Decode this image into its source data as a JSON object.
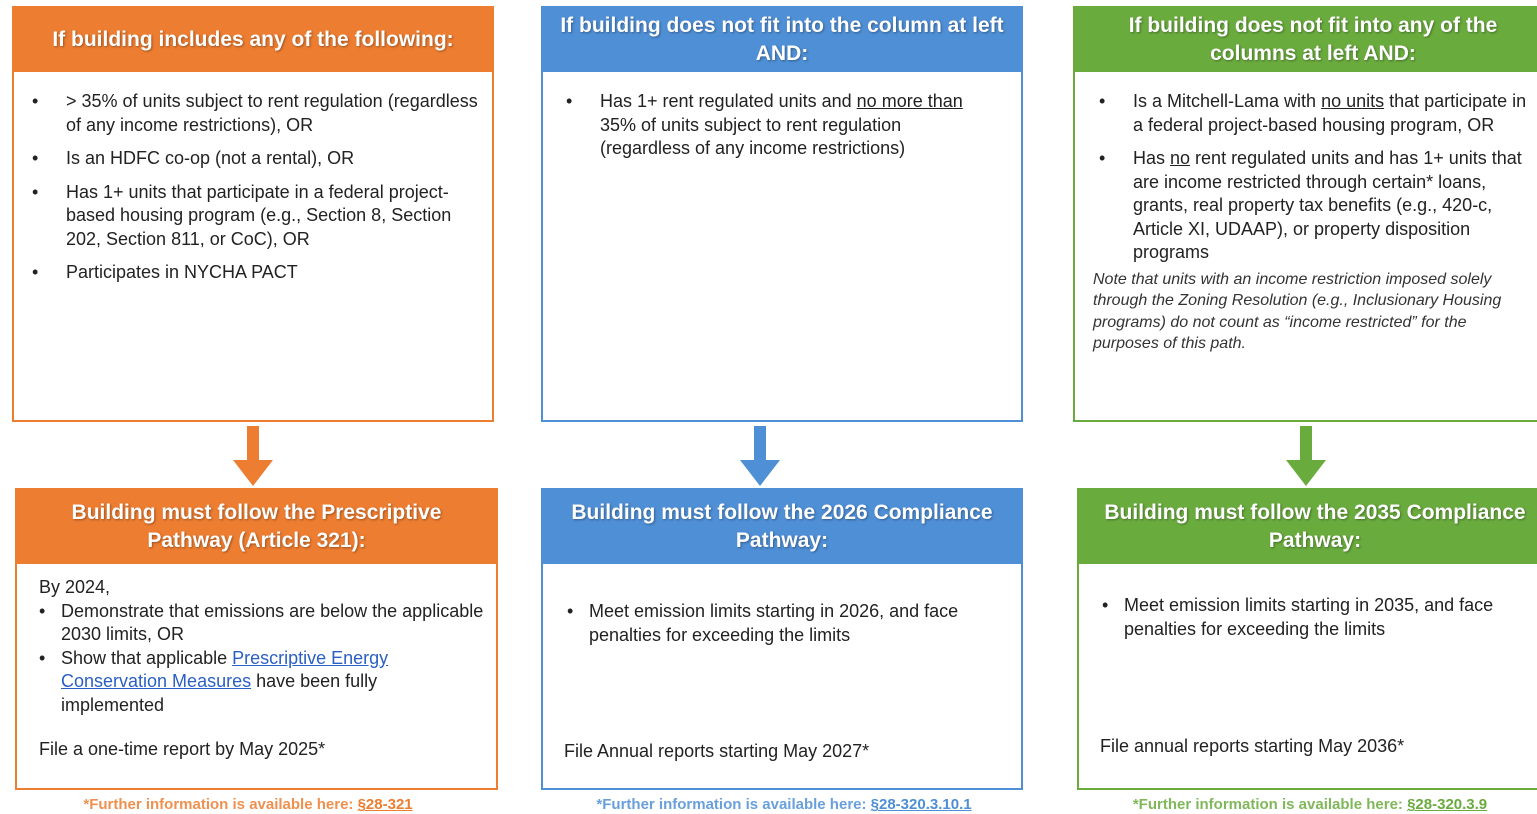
{
  "columns": [
    {
      "color": "#ed7d31",
      "condition": {
        "title": "If building includes any of the following:",
        "bullets": [
          [
            "> 35% of units subject to rent regulation (regardless of any income restrictions), OR"
          ],
          [
            "Is an HDFC co-op (not a rental), OR"
          ],
          [
            "Has 1+ units that participate in a federal project-based housing program (e.g., Section 8, Section 202, Section 811, or CoC), OR"
          ],
          [
            "Participates in NYCHA PACT"
          ]
        ]
      },
      "pathway": {
        "title": "Building must follow the Prescriptive Pathway (Article 321):",
        "intro": "By 2024,",
        "bullets": [
          [
            "Demonstrate that emissions are below the applicable 2030 limits, OR"
          ],
          [
            "Show that applicable ",
            {
              "text": "Prescriptive Energy Conservation Measures",
              "link": true
            },
            " have been fully implemented"
          ]
        ],
        "file": "File a one-time report by May 2025*"
      },
      "footer": {
        "text": "*Further information is available here: ",
        "link": "§28-321"
      }
    },
    {
      "color": "#4f8fd6",
      "condition": {
        "title": "If building does not fit into the column at left AND:",
        "bullets": [
          [
            "Has 1+ rent regulated units and ",
            {
              "text": "no more than",
              "underline": true
            },
            " 35% of units subject to rent regulation (regardless of any income restrictions)"
          ]
        ]
      },
      "pathway": {
        "title": "Building must follow the 2026 Compliance Pathway:",
        "bullets": [
          [
            "Meet emission limits starting in 2026, and face penalties for exceeding the limits"
          ]
        ],
        "file": "File Annual reports starting May 2027*"
      },
      "footer": {
        "text": "*Further information is available here: ",
        "link": "§28-320.3.10.1"
      }
    },
    {
      "color": "#6aab3e",
      "condition": {
        "title": "If building does not fit into any of the columns at left AND:",
        "bullets": [
          [
            "Is a Mitchell-Lama with ",
            {
              "text": "no units",
              "underline": true
            },
            " that participate in a federal project-based housing program, OR"
          ],
          [
            "Has ",
            {
              "text": "no",
              "underline": true
            },
            " rent regulated units and has 1+ units that are income restricted through certain* loans, grants, real property tax benefits (e.g., 420-c, Article XI, UDAAP), or property disposition programs"
          ]
        ],
        "note": "Note that units with an income restriction imposed solely through the Zoning Resolution (e.g., Inclusionary Housing programs) do not count as “income restricted” for the purposes of this path."
      },
      "pathway": {
        "title": "Building must follow the 2035 Compliance Pathway:",
        "bullets": [
          [
            "Meet emission limits starting in 2035, and face penalties for exceeding the limits"
          ]
        ],
        "file": "File annual reports starting May 2036*"
      },
      "footer": {
        "text": "*Further information is available here: ",
        "link": "§28-320.3.9"
      }
    }
  ]
}
